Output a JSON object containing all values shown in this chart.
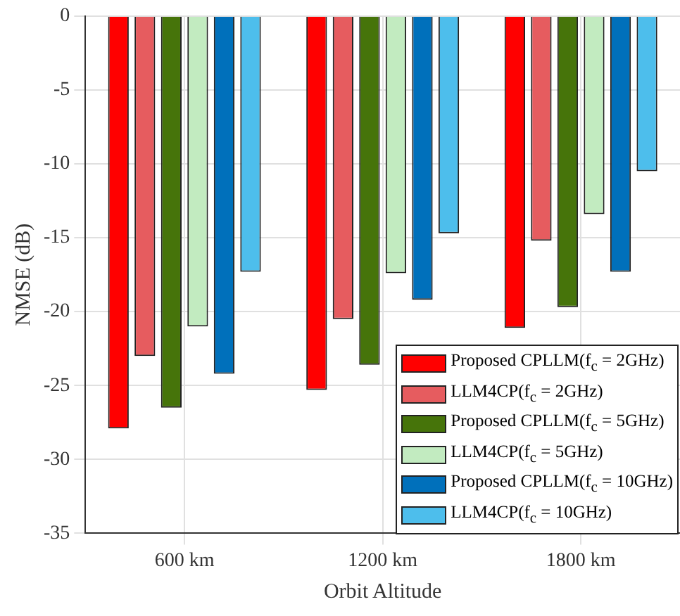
{
  "chart_data": {
    "type": "bar",
    "xlabel": "Orbit Altitude",
    "ylabel": "NMSE (dB)",
    "categories": [
      "600 km",
      "1200 km",
      "1800 km"
    ],
    "series": [
      {
        "name": "Proposed CPLLM(f$_{c}$ = 2GHz)",
        "color": "#ff0000",
        "values": [
          -27.9,
          -25.3,
          -21.1
        ]
      },
      {
        "name": "LLM4CP(f$_{c}$ = 2GHz)",
        "color": "#e65c5f",
        "values": [
          -23.0,
          -20.5,
          -15.2
        ]
      },
      {
        "name": "Proposed CPLLM(f$_{c}$ = 5GHz)",
        "color": "#46740a",
        "values": [
          -26.5,
          -23.6,
          -19.7
        ]
      },
      {
        "name": "LLM4CP(f$_{c}$ = 5GHz)",
        "color": "#c2ebc0",
        "values": [
          -21.0,
          -17.4,
          -13.4
        ]
      },
      {
        "name": "Proposed CPLLM(f$_{c}$ = 10GHz)",
        "color": "#0070bb",
        "values": [
          -24.2,
          -19.2,
          -17.3
        ]
      },
      {
        "name": "LLM4CP(f$_{c}$ = 10GHz)",
        "color": "#4dbeec",
        "values": [
          -17.3,
          -14.7,
          -10.5
        ]
      }
    ],
    "ylim": [
      -35,
      0
    ],
    "yticks": [
      -35,
      -30,
      -25,
      -20,
      -15,
      -10,
      -5,
      0
    ],
    "grid": true,
    "legend": "bottom right"
  }
}
